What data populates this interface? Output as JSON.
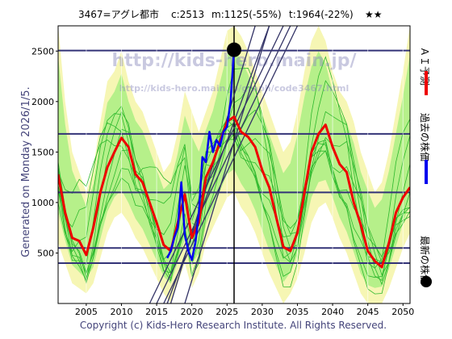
{
  "header": {
    "code_name": "3467=アグレ都市",
    "current": "c:2513",
    "min": "m:1125(-55%)",
    "target": "t:1964(-22%)",
    "rating": "★★"
  },
  "side_label": "Generated on Monday 2026/1/5.",
  "footer": "Copyright (c) Kids-Hero Research Institute. All Rights Reserved.",
  "watermark_main": "http://kids-hero.main.jp/",
  "watermark_sub": "http://kids-hero.main.jp/graph/code3467.html",
  "legend": {
    "ai_label": "ＡＩ予測",
    "past_label": "過去の株価",
    "latest_label": "最新の株価"
  },
  "colors": {
    "ai": "#ee0000",
    "past": "#0000ee",
    "latest": "#000000",
    "band_green": "#2db82d",
    "band_yellow": "#f6f6b4",
    "band_lightgreen": "#b6f08a",
    "hline": "#333377",
    "diag": "#333366"
  },
  "chart_data": {
    "type": "line",
    "xlim": [
      2001,
      2051
    ],
    "ylim": [
      0,
      2750
    ],
    "xticks": [
      2005,
      2010,
      2015,
      2020,
      2025,
      2030,
      2035,
      2040,
      2045,
      2050
    ],
    "yticks": [
      500,
      1000,
      1500,
      2000,
      2500
    ],
    "hlines": [
      400,
      550,
      1100,
      1680,
      2505
    ],
    "latest_point": {
      "x": 2026.0,
      "y": 2513
    },
    "series": [
      {
        "name": "ＡＩ予測",
        "x": [
          2001,
          2002,
          2003,
          2004,
          2005,
          2006,
          2007,
          2008,
          2009,
          2010,
          2011,
          2012,
          2013,
          2014,
          2015,
          2016,
          2017,
          2018,
          2019,
          2020,
          2021,
          2022,
          2023,
          2024,
          2025,
          2026,
          2027,
          2028,
          2029,
          2030,
          2031,
          2032,
          2033,
          2034,
          2035,
          2036,
          2037,
          2038,
          2039,
          2040,
          2041,
          2042,
          2043,
          2044,
          2045,
          2046,
          2047,
          2048,
          2049,
          2050,
          2051
        ],
        "y": [
          1280,
          900,
          650,
          620,
          480,
          750,
          1100,
          1350,
          1500,
          1640,
          1550,
          1280,
          1200,
          1000,
          800,
          580,
          520,
          800,
          1080,
          650,
          800,
          1250,
          1400,
          1600,
          1800,
          1850,
          1700,
          1650,
          1550,
          1320,
          1150,
          850,
          560,
          520,
          700,
          1100,
          1500,
          1680,
          1770,
          1550,
          1380,
          1300,
          1000,
          780,
          520,
          420,
          360,
          600,
          900,
          1050,
          1150
        ]
      },
      {
        "name": "過去の株価",
        "x": [
          2016.5,
          2017,
          2017.5,
          2018,
          2018.5,
          2019,
          2019.5,
          2020,
          2020.5,
          2021,
          2021.5,
          2022,
          2022.5,
          2023,
          2023.5,
          2024,
          2024.5,
          2025,
          2025.5,
          2026
        ],
        "y": [
          450,
          520,
          650,
          750,
          1200,
          680,
          520,
          430,
          600,
          900,
          1450,
          1400,
          1700,
          1500,
          1620,
          1560,
          1700,
          1750,
          2000,
          2513
        ]
      }
    ],
    "diagonal_lines": [
      {
        "x0": 2014,
        "y0": 0,
        "x1": 2033,
        "y1": 2750
      },
      {
        "x0": 2015,
        "y0": 0,
        "x1": 2034,
        "y1": 2750
      },
      {
        "x0": 2016,
        "y0": 0,
        "x1": 2035,
        "y1": 2750
      },
      {
        "x0": 2016.5,
        "y0": 0,
        "x1": 2031,
        "y1": 2750
      },
      {
        "x0": 2017,
        "y0": 0,
        "x1": 2029,
        "y1": 2750
      },
      {
        "x0": 2019,
        "y0": 0,
        "x1": 2031,
        "y1": 2750
      }
    ],
    "envelope_upper": [
      2750,
      2000,
      1500,
      1300,
      1100,
      1350,
      1800,
      2200,
      2300,
      2500,
      2200,
      2000,
      1900,
      1700,
      1500,
      1300,
      1400,
      1700,
      2100,
      1900,
      1700,
      1900,
      2100,
      2400,
      2700,
      2750,
      2650,
      2500,
      2300,
      2100,
      1900,
      1700,
      1500,
      1600,
      1900,
      2300,
      2600,
      2750,
      2600,
      2300,
      2100,
      2000,
      1800,
      1500,
      1300,
      1100,
      1200,
      1500,
      1900,
      2300,
      2750
    ],
    "envelope_lower": [
      600,
      400,
      200,
      150,
      100,
      200,
      450,
      700,
      850,
      900,
      800,
      650,
      550,
      400,
      250,
      100,
      0,
      200,
      400,
      150,
      300,
      600,
      750,
      900,
      1050,
      1100,
      950,
      850,
      700,
      500,
      300,
      150,
      0,
      100,
      250,
      500,
      800,
      950,
      1000,
      850,
      650,
      500,
      300,
      100,
      0,
      0,
      0,
      150,
      350,
      550,
      700
    ]
  }
}
